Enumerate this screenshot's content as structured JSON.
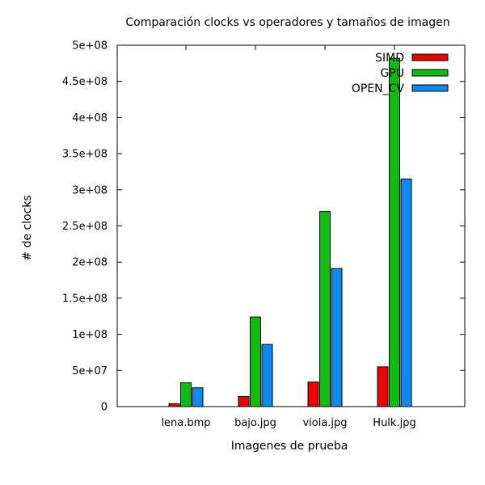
{
  "chart_data": {
    "type": "bar",
    "title": "Comparación clocks vs operadores y tamaños de imagen",
    "xlabel": "Imagenes de prueba",
    "ylabel": "# de clocks",
    "categories": [
      "lena.bmp",
      "bajo.jpg",
      "viola.jpg",
      "Hulk.jpg"
    ],
    "ylim": [
      0,
      500000000
    ],
    "yticks": [
      0,
      50000000,
      100000000,
      150000000,
      200000000,
      250000000,
      300000000,
      350000000,
      400000000,
      450000000,
      500000000
    ],
    "ytick_labels": [
      "0",
      "5e+07",
      "1e+08",
      "1.5e+08",
      "2e+08",
      "2.5e+08",
      "3e+08",
      "3.5e+08",
      "4e+08",
      "4.5e+08",
      "5e+08"
    ],
    "series": [
      {
        "name": "SIMD",
        "color": "#ee0000",
        "values": [
          4000000,
          14000000,
          34000000,
          55000000
        ]
      },
      {
        "name": "GPU",
        "color": "#11bb11",
        "values": [
          33000000,
          124000000,
          270000000,
          482000000
        ]
      },
      {
        "name": "OPEN_CV",
        "color": "#1188ee",
        "values": [
          26000000,
          86000000,
          191000000,
          315000000
        ]
      }
    ],
    "legend_position": "top-right",
    "grid": false
  }
}
